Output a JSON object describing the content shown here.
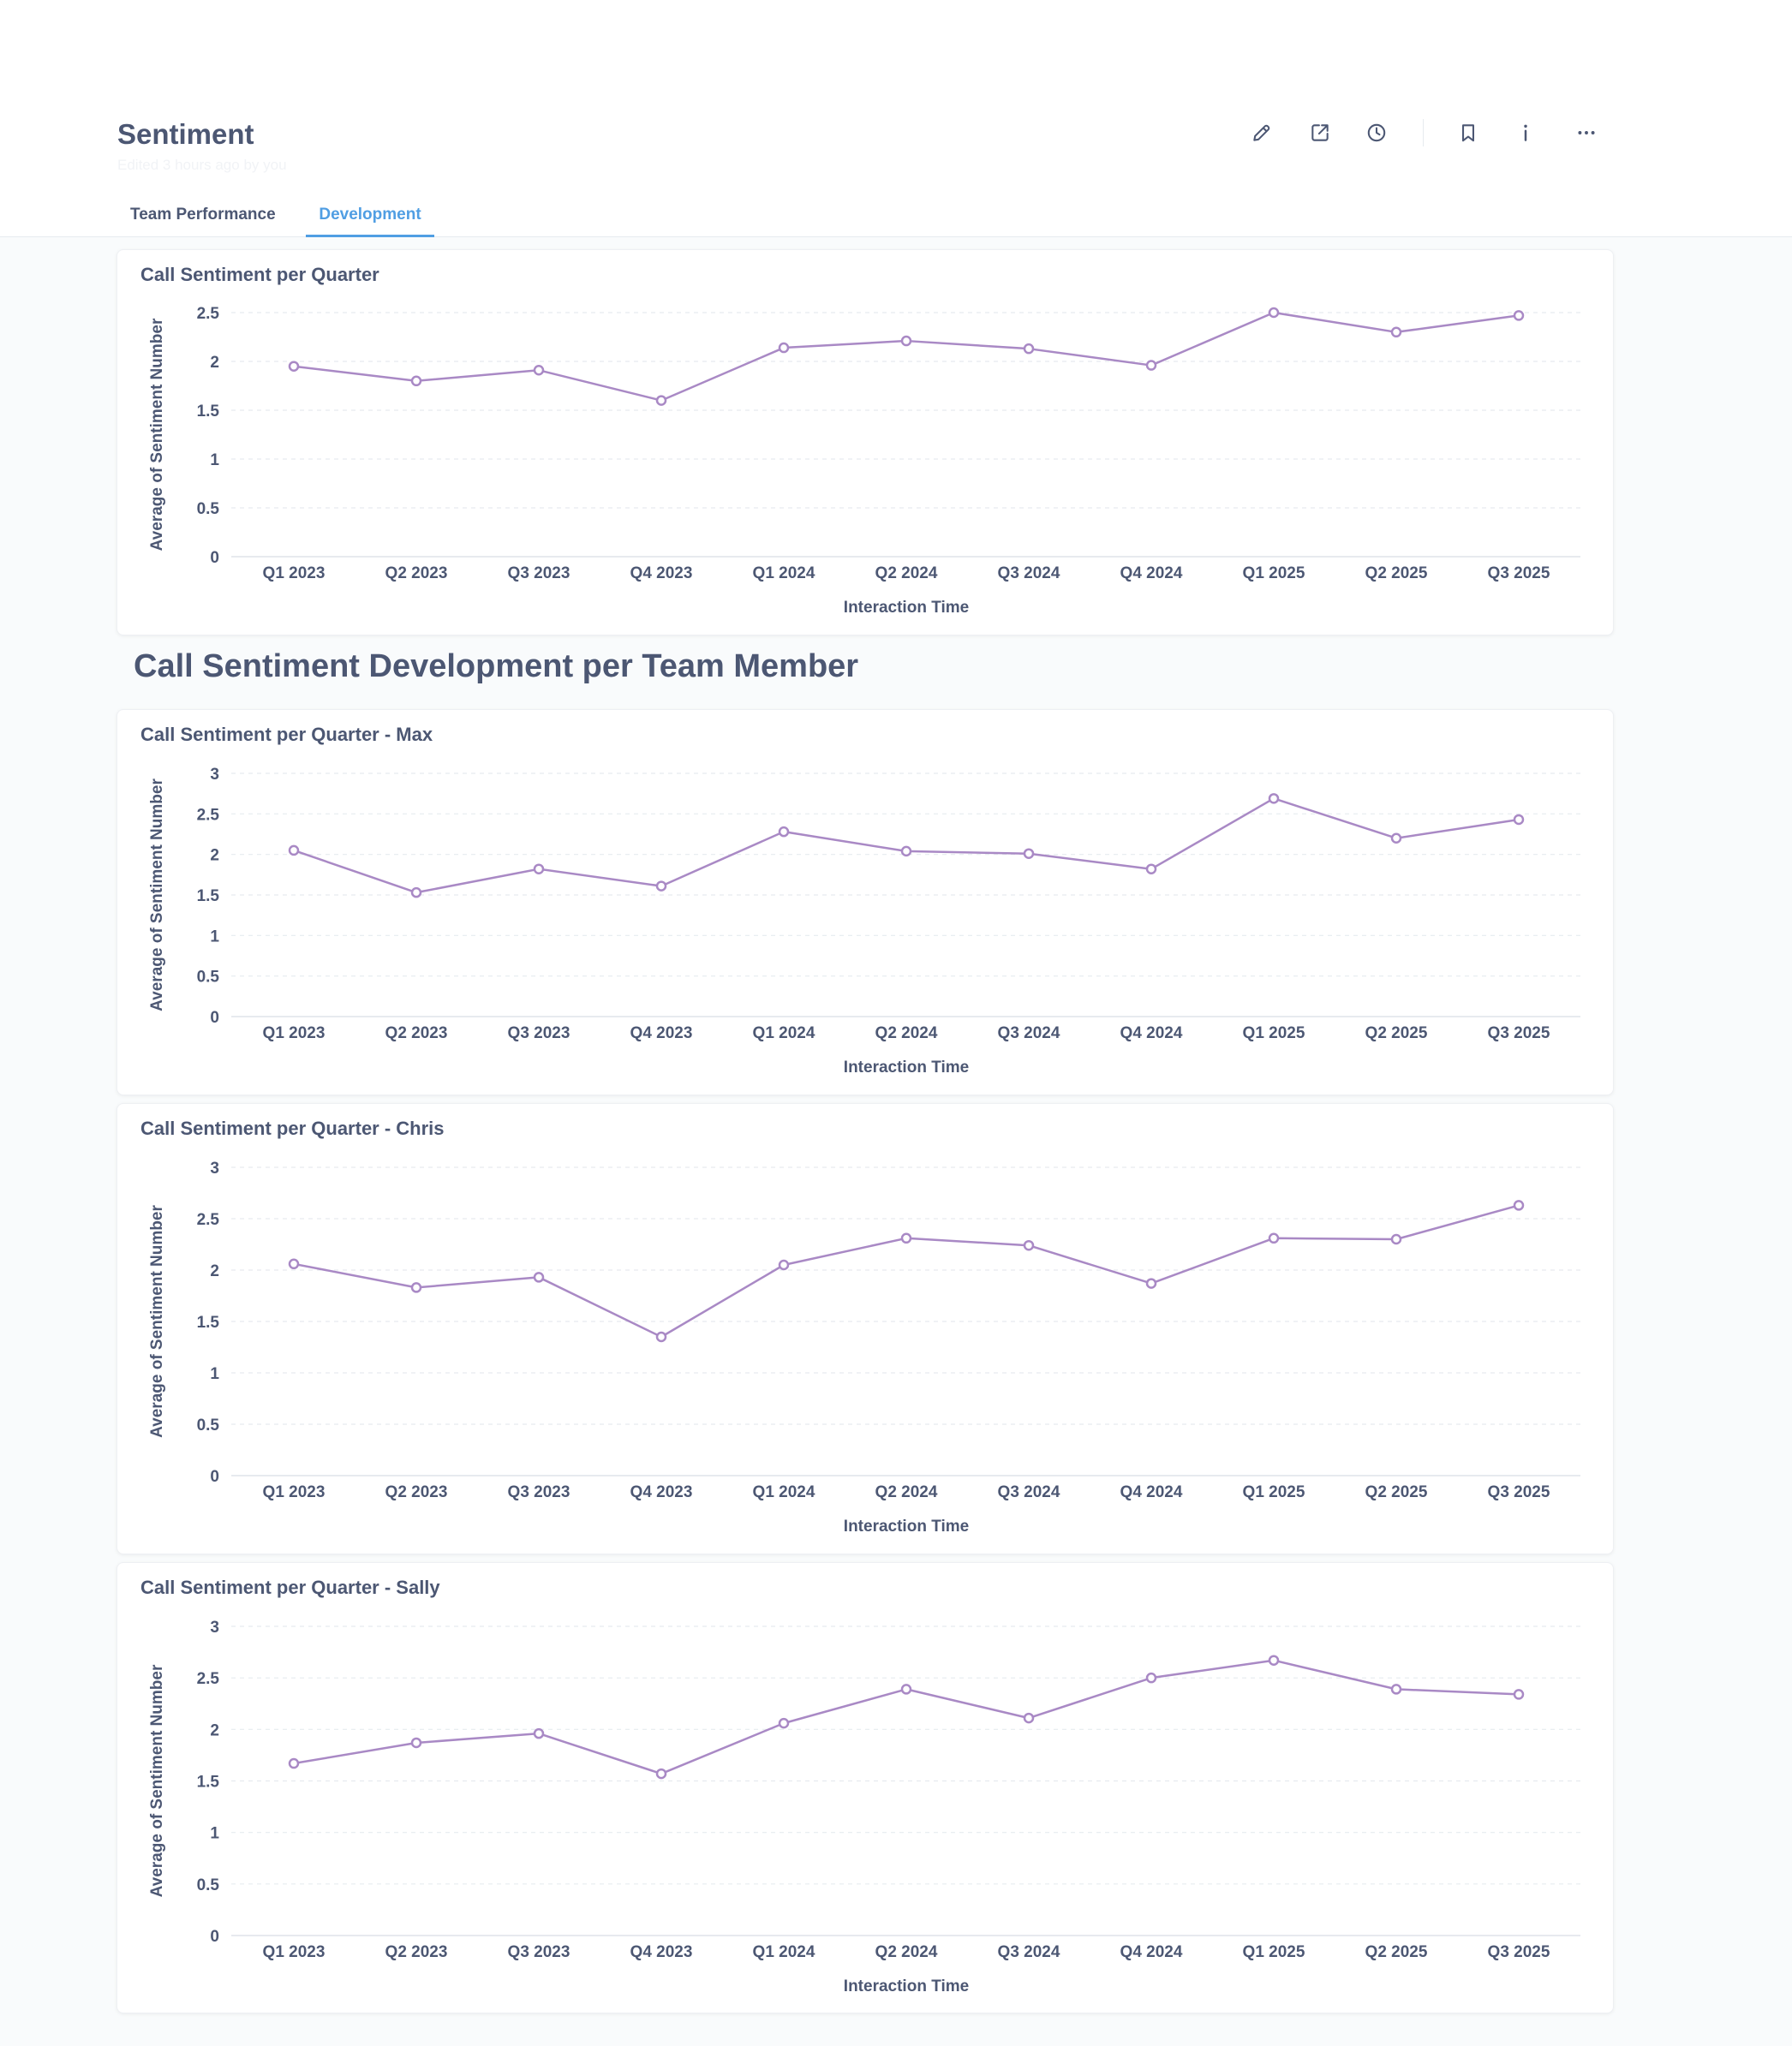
{
  "page": {
    "title": "Sentiment",
    "edited_note": "Edited 3 hours ago by you"
  },
  "toolbar": {
    "edit_icon": "pencil-icon",
    "share_icon": "share-icon",
    "history_icon": "clock-icon",
    "bookmark_icon": "bookmark-icon",
    "info_icon": "info-icon",
    "more_icon": "more-icon"
  },
  "tabs": [
    {
      "label": "Team Performance",
      "active": false
    },
    {
      "label": "Development",
      "active": true
    }
  ],
  "section_heading": "Call Sentiment Development per Team Member",
  "colors": {
    "line": "#a989c5",
    "accent": "#509ee3",
    "text": "#4c5773",
    "grid": "#e6ebef"
  },
  "chart_data": [
    {
      "type": "line",
      "title": "Call Sentiment per Quarter",
      "xlabel": "Interaction Time",
      "ylabel": "Average of Sentiment Number",
      "x": [
        "Q1 2023",
        "Q2 2023",
        "Q3 2023",
        "Q4 2023",
        "Q1 2024",
        "Q2 2024",
        "Q3 2024",
        "Q4 2024",
        "Q1 2025",
        "Q2 2025",
        "Q3 2025"
      ],
      "values": [
        1.95,
        1.8,
        1.91,
        1.6,
        2.14,
        2.21,
        2.13,
        1.96,
        2.5,
        2.3,
        2.47
      ],
      "ylim": [
        0,
        2.5
      ],
      "yticks": [
        "0",
        "0.5",
        "1",
        "1.5",
        "2",
        "2.5"
      ],
      "grid": true
    },
    {
      "type": "line",
      "title": "Call Sentiment per Quarter - Max",
      "xlabel": "Interaction Time",
      "ylabel": "Average of Sentiment Number",
      "x": [
        "Q1 2023",
        "Q2 2023",
        "Q3 2023",
        "Q4 2023",
        "Q1 2024",
        "Q2 2024",
        "Q3 2024",
        "Q4 2024",
        "Q1 2025",
        "Q2 2025",
        "Q3 2025"
      ],
      "values": [
        2.05,
        1.53,
        1.82,
        1.61,
        2.28,
        2.04,
        2.01,
        1.82,
        2.69,
        2.2,
        2.43
      ],
      "ylim": [
        0,
        3
      ],
      "yticks": [
        "0",
        "0.5",
        "1",
        "1.5",
        "2",
        "2.5",
        "3"
      ],
      "grid": true
    },
    {
      "type": "line",
      "title": "Call Sentiment per Quarter - Chris",
      "xlabel": "Interaction Time",
      "ylabel": "Average of Sentiment Number",
      "x": [
        "Q1 2023",
        "Q2 2023",
        "Q3 2023",
        "Q4 2023",
        "Q1 2024",
        "Q2 2024",
        "Q3 2024",
        "Q4 2024",
        "Q1 2025",
        "Q2 2025",
        "Q3 2025"
      ],
      "values": [
        2.06,
        1.83,
        1.93,
        1.35,
        2.05,
        2.31,
        2.24,
        1.87,
        2.31,
        2.3,
        2.63
      ],
      "ylim": [
        0,
        3
      ],
      "yticks": [
        "0",
        "0.5",
        "1",
        "1.5",
        "2",
        "2.5",
        "3"
      ],
      "grid": true
    },
    {
      "type": "line",
      "title": "Call Sentiment per Quarter - Sally",
      "xlabel": "Interaction Time",
      "ylabel": "Average of Sentiment Number",
      "x": [
        "Q1 2023",
        "Q2 2023",
        "Q3 2023",
        "Q4 2023",
        "Q1 2024",
        "Q2 2024",
        "Q3 2024",
        "Q4 2024",
        "Q1 2025",
        "Q2 2025",
        "Q3 2025"
      ],
      "values": [
        1.67,
        1.87,
        1.96,
        1.57,
        2.06,
        2.39,
        2.11,
        2.5,
        2.67,
        2.39,
        2.34
      ],
      "ylim": [
        0,
        3
      ],
      "yticks": [
        "0",
        "0.5",
        "1",
        "1.5",
        "2",
        "2.5",
        "3"
      ],
      "grid": true
    }
  ]
}
